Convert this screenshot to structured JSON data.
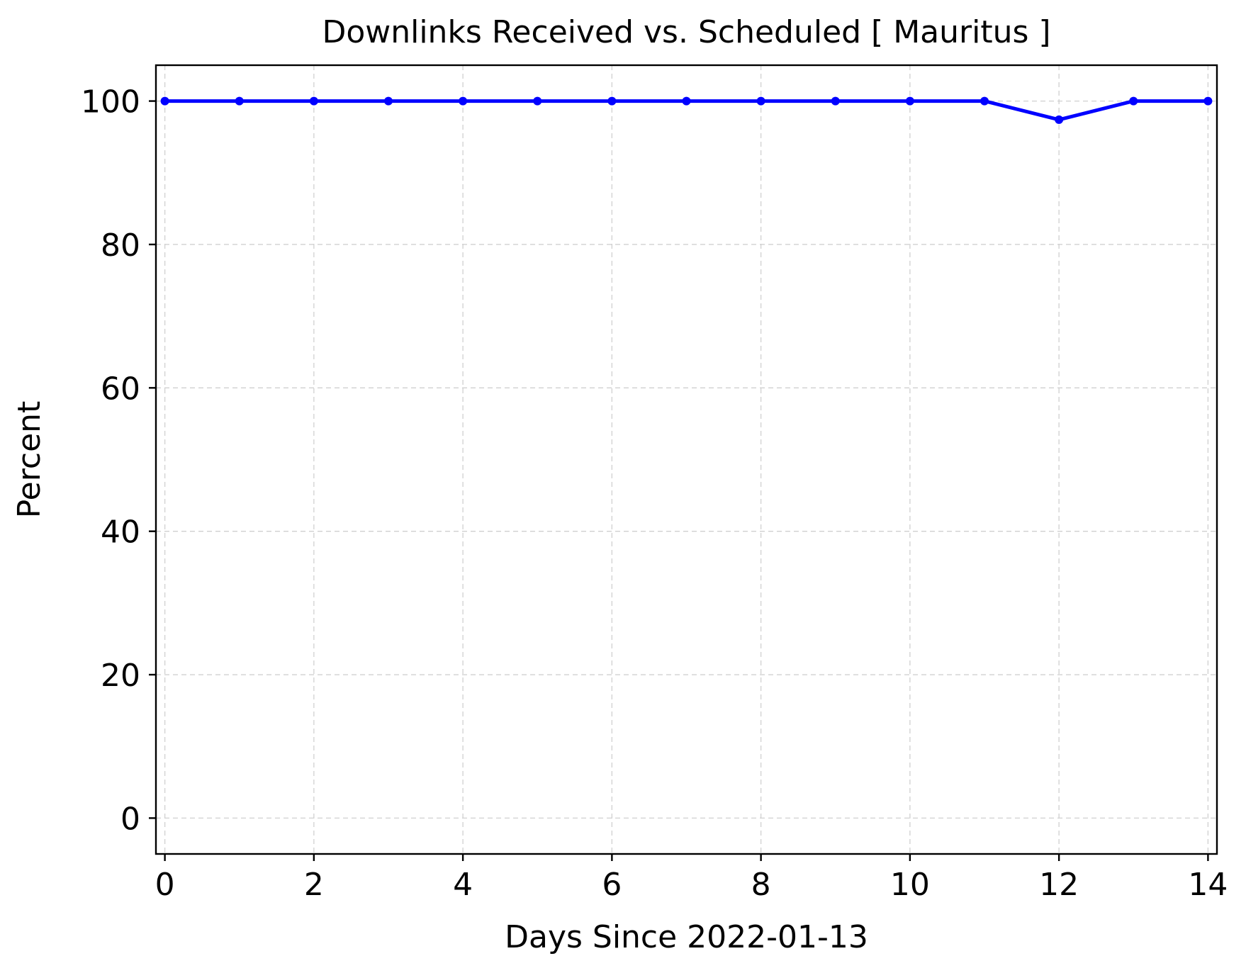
{
  "chart_data": {
    "type": "line",
    "title": "Downlinks Received vs. Scheduled [ Mauritus ]",
    "xlabel": "Days Since 2022-01-13",
    "ylabel": "Percent",
    "xlim": [
      -0.12,
      14.12
    ],
    "ylim": [
      -5,
      105
    ],
    "xticks": [
      0,
      2,
      4,
      6,
      8,
      10,
      12,
      14
    ],
    "yticks": [
      0,
      20,
      40,
      60,
      80,
      100
    ],
    "grid": true,
    "grid_style": "dashed",
    "series": [
      {
        "color": "#0000ff",
        "marker": "circle",
        "x": [
          0,
          1,
          2,
          3,
          4,
          5,
          6,
          7,
          8,
          9,
          10,
          11,
          12,
          13,
          14
        ],
        "y": [
          100,
          100,
          100,
          100,
          100,
          100,
          100,
          100,
          100,
          100,
          100,
          100,
          97.4,
          100,
          100
        ]
      }
    ]
  }
}
